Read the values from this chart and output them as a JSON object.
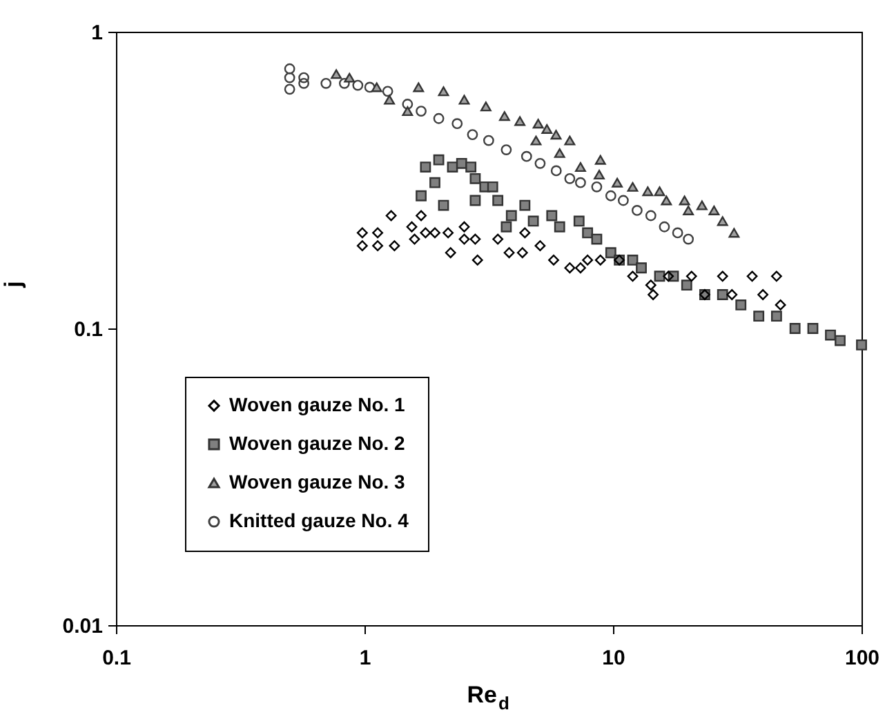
{
  "chart_data": {
    "type": "scatter",
    "xlabel": "Re$_{d}$",
    "ylabel": "j",
    "log": "xy",
    "xlim": [
      0.1,
      100
    ],
    "ylim": [
      0.01,
      1
    ],
    "xticks": [
      0.1,
      1,
      10,
      100
    ],
    "yticks": [
      0.01,
      0.1,
      1
    ],
    "grid": false,
    "legend": "left",
    "series": [
      {
        "name": "Woven gauze No. 1",
        "color": "#000000",
        "marker": "diamond",
        "x": [
          0.98,
          0.98,
          1.13,
          1.13,
          1.28,
          1.32,
          1.55,
          1.59,
          1.69,
          1.76,
          1.92,
          2.17,
          2.22,
          2.52,
          2.52,
          2.79,
          2.85,
          3.44,
          3.82,
          4.32,
          4.42,
          5.09,
          5.77,
          6.7,
          7.4,
          7.9,
          8.9,
          10.6,
          12.0,
          14.2,
          14.5,
          16.7,
          20.7,
          23.4,
          27.6,
          30.1,
          36.3,
          40.1,
          45.5,
          47.2
        ],
        "values": [
          0.21,
          0.19,
          0.21,
          0.19,
          0.24,
          0.19,
          0.22,
          0.2,
          0.24,
          0.21,
          0.21,
          0.21,
          0.18,
          0.22,
          0.2,
          0.2,
          0.17,
          0.2,
          0.18,
          0.18,
          0.21,
          0.19,
          0.17,
          0.16,
          0.16,
          0.17,
          0.17,
          0.17,
          0.15,
          0.14,
          0.13,
          0.15,
          0.15,
          0.13,
          0.15,
          0.13,
          0.15,
          0.13,
          0.15,
          0.12
        ]
      },
      {
        "name": "Woven gauze No. 2",
        "color": "#808080",
        "marker": "square",
        "x": [
          1.69,
          1.76,
          1.92,
          1.99,
          2.08,
          2.26,
          2.46,
          2.68,
          2.79,
          2.79,
          3.05,
          3.28,
          3.44,
          3.72,
          3.9,
          4.42,
          4.78,
          5.67,
          6.1,
          7.3,
          7.9,
          8.6,
          9.8,
          10.6,
          12.0,
          13.0,
          15.4,
          17.5,
          19.8,
          23.4,
          27.6,
          32.7,
          38.6,
          45.5,
          54,
          63.7,
          75,
          82,
          100
        ],
        "values": [
          0.28,
          0.35,
          0.31,
          0.37,
          0.26,
          0.35,
          0.36,
          0.35,
          0.27,
          0.32,
          0.3,
          0.3,
          0.27,
          0.22,
          0.24,
          0.26,
          0.23,
          0.24,
          0.22,
          0.23,
          0.21,
          0.2,
          0.18,
          0.17,
          0.17,
          0.16,
          0.15,
          0.15,
          0.14,
          0.13,
          0.13,
          0.12,
          0.11,
          0.11,
          0.1,
          0.1,
          0.095,
          0.091,
          0.088
        ]
      },
      {
        "name": "Woven gauze No. 3",
        "color": "#a0a0a0",
        "marker": "triangle",
        "x": [
          0.77,
          0.87,
          1.12,
          1.26,
          1.49,
          1.65,
          2.08,
          2.52,
          3.08,
          3.66,
          4.22,
          5.0,
          5.42,
          4.9,
          5.9,
          6.7,
          6.1,
          7.4,
          8.9,
          8.8,
          10.4,
          12.0,
          13.8,
          15.4,
          16.4,
          19.4,
          20.1,
          22.8,
          25.5,
          27.6,
          30.7
        ],
        "values": [
          0.72,
          0.7,
          0.65,
          0.59,
          0.54,
          0.65,
          0.63,
          0.59,
          0.56,
          0.52,
          0.5,
          0.49,
          0.47,
          0.43,
          0.45,
          0.43,
          0.39,
          0.35,
          0.37,
          0.33,
          0.31,
          0.3,
          0.29,
          0.29,
          0.27,
          0.27,
          0.25,
          0.26,
          0.25,
          0.23,
          0.21
        ]
      },
      {
        "name": "Knitted gauze No. 4",
        "color": "#404040",
        "marker": "circle",
        "x": [
          0.5,
          0.5,
          0.5,
          0.57,
          0.57,
          0.7,
          0.83,
          0.94,
          1.05,
          1.24,
          1.49,
          1.69,
          1.99,
          2.36,
          2.72,
          3.16,
          3.72,
          4.49,
          5.09,
          5.91,
          6.7,
          7.4,
          8.6,
          9.8,
          11.0,
          12.5,
          14.2,
          16.1,
          18.2,
          20.1
        ],
        "values": [
          0.75,
          0.7,
          0.64,
          0.7,
          0.67,
          0.67,
          0.67,
          0.66,
          0.65,
          0.63,
          0.57,
          0.54,
          0.51,
          0.49,
          0.45,
          0.43,
          0.4,
          0.38,
          0.36,
          0.34,
          0.32,
          0.31,
          0.3,
          0.28,
          0.27,
          0.25,
          0.24,
          0.22,
          0.21,
          0.2
        ]
      }
    ]
  }
}
